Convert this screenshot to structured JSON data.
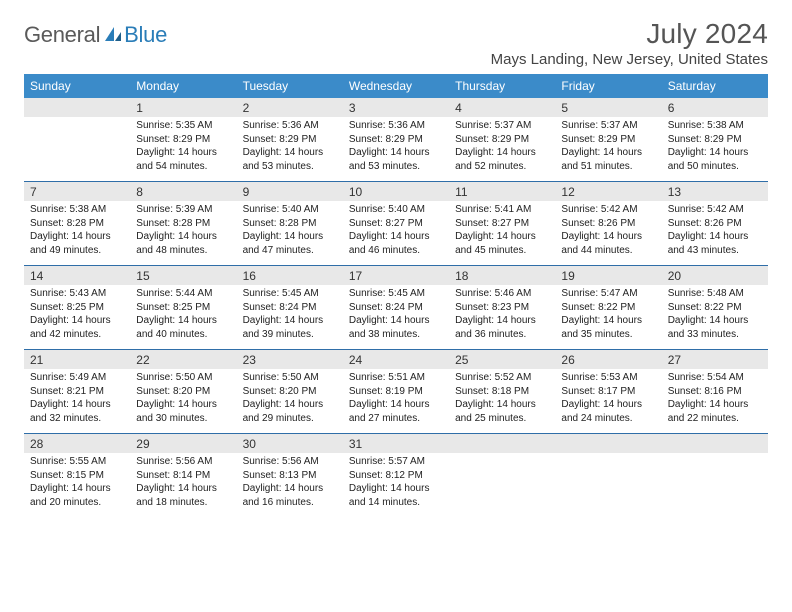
{
  "logo": {
    "text1": "General",
    "text2": "Blue",
    "color1": "#5a5a5a",
    "color2": "#2a7db8"
  },
  "title": "July 2024",
  "location": "Mays Landing, New Jersey, United States",
  "styles": {
    "header_bg": "#3b8bc9",
    "daynum_bg": "#e8e8e8",
    "divider": "#2f6ea8",
    "title_color": "#555555",
    "text_color": "#222222"
  },
  "weekdays": [
    "Sunday",
    "Monday",
    "Tuesday",
    "Wednesday",
    "Thursday",
    "Friday",
    "Saturday"
  ],
  "weeks": [
    [
      null,
      {
        "n": "1",
        "sr": "Sunrise: 5:35 AM",
        "ss": "Sunset: 8:29 PM",
        "d1": "Daylight: 14 hours",
        "d2": "and 54 minutes."
      },
      {
        "n": "2",
        "sr": "Sunrise: 5:36 AM",
        "ss": "Sunset: 8:29 PM",
        "d1": "Daylight: 14 hours",
        "d2": "and 53 minutes."
      },
      {
        "n": "3",
        "sr": "Sunrise: 5:36 AM",
        "ss": "Sunset: 8:29 PM",
        "d1": "Daylight: 14 hours",
        "d2": "and 53 minutes."
      },
      {
        "n": "4",
        "sr": "Sunrise: 5:37 AM",
        "ss": "Sunset: 8:29 PM",
        "d1": "Daylight: 14 hours",
        "d2": "and 52 minutes."
      },
      {
        "n": "5",
        "sr": "Sunrise: 5:37 AM",
        "ss": "Sunset: 8:29 PM",
        "d1": "Daylight: 14 hours",
        "d2": "and 51 minutes."
      },
      {
        "n": "6",
        "sr": "Sunrise: 5:38 AM",
        "ss": "Sunset: 8:29 PM",
        "d1": "Daylight: 14 hours",
        "d2": "and 50 minutes."
      }
    ],
    [
      {
        "n": "7",
        "sr": "Sunrise: 5:38 AM",
        "ss": "Sunset: 8:28 PM",
        "d1": "Daylight: 14 hours",
        "d2": "and 49 minutes."
      },
      {
        "n": "8",
        "sr": "Sunrise: 5:39 AM",
        "ss": "Sunset: 8:28 PM",
        "d1": "Daylight: 14 hours",
        "d2": "and 48 minutes."
      },
      {
        "n": "9",
        "sr": "Sunrise: 5:40 AM",
        "ss": "Sunset: 8:28 PM",
        "d1": "Daylight: 14 hours",
        "d2": "and 47 minutes."
      },
      {
        "n": "10",
        "sr": "Sunrise: 5:40 AM",
        "ss": "Sunset: 8:27 PM",
        "d1": "Daylight: 14 hours",
        "d2": "and 46 minutes."
      },
      {
        "n": "11",
        "sr": "Sunrise: 5:41 AM",
        "ss": "Sunset: 8:27 PM",
        "d1": "Daylight: 14 hours",
        "d2": "and 45 minutes."
      },
      {
        "n": "12",
        "sr": "Sunrise: 5:42 AM",
        "ss": "Sunset: 8:26 PM",
        "d1": "Daylight: 14 hours",
        "d2": "and 44 minutes."
      },
      {
        "n": "13",
        "sr": "Sunrise: 5:42 AM",
        "ss": "Sunset: 8:26 PM",
        "d1": "Daylight: 14 hours",
        "d2": "and 43 minutes."
      }
    ],
    [
      {
        "n": "14",
        "sr": "Sunrise: 5:43 AM",
        "ss": "Sunset: 8:25 PM",
        "d1": "Daylight: 14 hours",
        "d2": "and 42 minutes."
      },
      {
        "n": "15",
        "sr": "Sunrise: 5:44 AM",
        "ss": "Sunset: 8:25 PM",
        "d1": "Daylight: 14 hours",
        "d2": "and 40 minutes."
      },
      {
        "n": "16",
        "sr": "Sunrise: 5:45 AM",
        "ss": "Sunset: 8:24 PM",
        "d1": "Daylight: 14 hours",
        "d2": "and 39 minutes."
      },
      {
        "n": "17",
        "sr": "Sunrise: 5:45 AM",
        "ss": "Sunset: 8:24 PM",
        "d1": "Daylight: 14 hours",
        "d2": "and 38 minutes."
      },
      {
        "n": "18",
        "sr": "Sunrise: 5:46 AM",
        "ss": "Sunset: 8:23 PM",
        "d1": "Daylight: 14 hours",
        "d2": "and 36 minutes."
      },
      {
        "n": "19",
        "sr": "Sunrise: 5:47 AM",
        "ss": "Sunset: 8:22 PM",
        "d1": "Daylight: 14 hours",
        "d2": "and 35 minutes."
      },
      {
        "n": "20",
        "sr": "Sunrise: 5:48 AM",
        "ss": "Sunset: 8:22 PM",
        "d1": "Daylight: 14 hours",
        "d2": "and 33 minutes."
      }
    ],
    [
      {
        "n": "21",
        "sr": "Sunrise: 5:49 AM",
        "ss": "Sunset: 8:21 PM",
        "d1": "Daylight: 14 hours",
        "d2": "and 32 minutes."
      },
      {
        "n": "22",
        "sr": "Sunrise: 5:50 AM",
        "ss": "Sunset: 8:20 PM",
        "d1": "Daylight: 14 hours",
        "d2": "and 30 minutes."
      },
      {
        "n": "23",
        "sr": "Sunrise: 5:50 AM",
        "ss": "Sunset: 8:20 PM",
        "d1": "Daylight: 14 hours",
        "d2": "and 29 minutes."
      },
      {
        "n": "24",
        "sr": "Sunrise: 5:51 AM",
        "ss": "Sunset: 8:19 PM",
        "d1": "Daylight: 14 hours",
        "d2": "and 27 minutes."
      },
      {
        "n": "25",
        "sr": "Sunrise: 5:52 AM",
        "ss": "Sunset: 8:18 PM",
        "d1": "Daylight: 14 hours",
        "d2": "and 25 minutes."
      },
      {
        "n": "26",
        "sr": "Sunrise: 5:53 AM",
        "ss": "Sunset: 8:17 PM",
        "d1": "Daylight: 14 hours",
        "d2": "and 24 minutes."
      },
      {
        "n": "27",
        "sr": "Sunrise: 5:54 AM",
        "ss": "Sunset: 8:16 PM",
        "d1": "Daylight: 14 hours",
        "d2": "and 22 minutes."
      }
    ],
    [
      {
        "n": "28",
        "sr": "Sunrise: 5:55 AM",
        "ss": "Sunset: 8:15 PM",
        "d1": "Daylight: 14 hours",
        "d2": "and 20 minutes."
      },
      {
        "n": "29",
        "sr": "Sunrise: 5:56 AM",
        "ss": "Sunset: 8:14 PM",
        "d1": "Daylight: 14 hours",
        "d2": "and 18 minutes."
      },
      {
        "n": "30",
        "sr": "Sunrise: 5:56 AM",
        "ss": "Sunset: 8:13 PM",
        "d1": "Daylight: 14 hours",
        "d2": "and 16 minutes."
      },
      {
        "n": "31",
        "sr": "Sunrise: 5:57 AM",
        "ss": "Sunset: 8:12 PM",
        "d1": "Daylight: 14 hours",
        "d2": "and 14 minutes."
      },
      null,
      null,
      null
    ]
  ]
}
